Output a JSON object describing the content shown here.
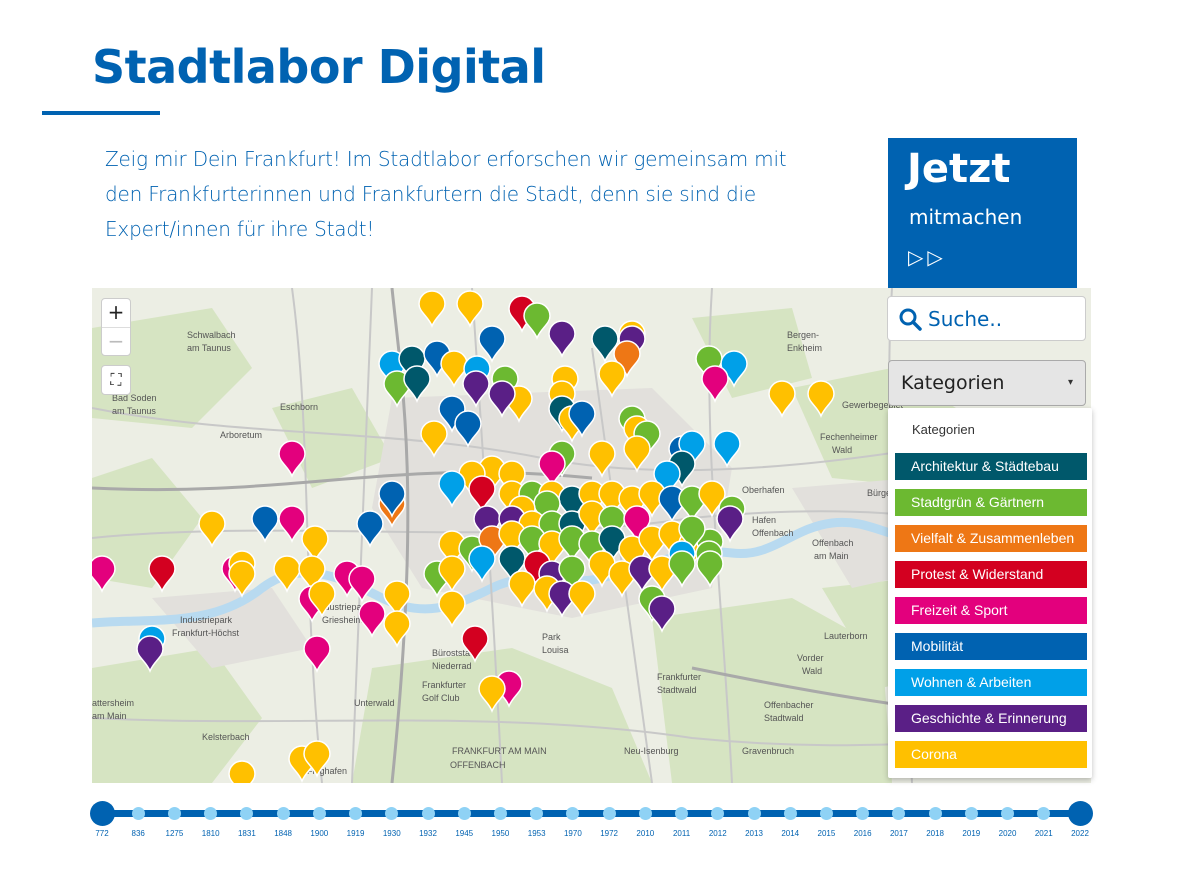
{
  "header": {
    "title": "Stadtlabor Digital",
    "intro": "Zeig mir Dein Frankfurt! Im Stadtlabor erforschen wir gemeinsam mit den Frankfurterinnen und Frankfurtern die Stadt, denn sie sind die Expert/innen für ihre Stadt!"
  },
  "cta": {
    "big": "Jetzt",
    "small": "mitmachen",
    "arrows": "▷▷"
  },
  "map": {
    "zoom_in": "+",
    "zoom_out": "−",
    "fullscreen": "⛶",
    "place_labels": [
      {
        "text": "Schwalbach"
      },
      {
        "text": "am Taunus"
      },
      {
        "text": "Bad Soden"
      },
      {
        "text": "am Taunus"
      },
      {
        "text": "Eschborn"
      },
      {
        "text": "Arboretum"
      },
      {
        "text": "Bergen-"
      },
      {
        "text": "Enkheim"
      },
      {
        "text": "Oberhafen"
      },
      {
        "text": "Offenbach"
      },
      {
        "text": "am Main"
      },
      {
        "text": "Hafen"
      },
      {
        "text": "Offenbach"
      },
      {
        "text": "Industriepark"
      },
      {
        "text": "Frankfurt-Höchst"
      },
      {
        "text": "Büroststadt"
      },
      {
        "text": "Niederrad"
      },
      {
        "text": "Frankfurter"
      },
      {
        "text": "Golf Club"
      },
      {
        "text": "Unterwald"
      },
      {
        "text": "Park"
      },
      {
        "text": "Louisa"
      },
      {
        "text": "Frankfurter"
      },
      {
        "text": "Stadtwald"
      },
      {
        "text": "FRANKFURT AM MAIN"
      },
      {
        "text": "OFFENBACH"
      },
      {
        "text": "Neu-Isenburg"
      },
      {
        "text": "Gravenbruch"
      },
      {
        "text": "Kelsterbach"
      },
      {
        "text": "Flughafen"
      },
      {
        "text": "Lauterborn"
      },
      {
        "text": "Vorder"
      },
      {
        "text": "Wald"
      },
      {
        "text": "Offenbacher"
      },
      {
        "text": "Stadtwald"
      },
      {
        "text": "Industriepark"
      },
      {
        "text": "Griesheim"
      },
      {
        "text": "attersheim"
      },
      {
        "text": "am Main"
      },
      {
        "text": "Fechenheimer"
      },
      {
        "text": "Wald"
      },
      {
        "text": "Bürge"
      },
      {
        "text": "Gewerbegebiet"
      }
    ]
  },
  "search": {
    "placeholder": "Suche.."
  },
  "categories": {
    "select_label": "Kategorien",
    "caret": "▾",
    "header": "Kategorien",
    "items": [
      {
        "label": "Architektur & Städtebau",
        "color": "#00586b"
      },
      {
        "label": "Stadtgrün & Gärtnern",
        "color": "#6cb931"
      },
      {
        "label": "Vielfalt & Zusammenleben",
        "color": "#ee7715"
      },
      {
        "label": "Protest & Widerstand",
        "color": "#d30020"
      },
      {
        "label": "Freizeit & Sport",
        "color": "#e3007d"
      },
      {
        "label": "Mobilität",
        "color": "#0062b1"
      },
      {
        "label": "Wohnen & Arbeiten",
        "color": "#00a0e8"
      },
      {
        "label": "Geschichte & Erinnerung",
        "color": "#5a1f86"
      },
      {
        "label": "Corona",
        "color": "#ffc000"
      }
    ]
  },
  "timeline": {
    "years": [
      "772",
      "836",
      "1275",
      "1810",
      "1831",
      "1848",
      "1900",
      "1919",
      "1930",
      "1932",
      "1945",
      "1950",
      "1953",
      "1970",
      "1972",
      "2010",
      "2011",
      "2012",
      "2013",
      "2014",
      "2015",
      "2016",
      "2017",
      "2018",
      "2019",
      "2020",
      "2021",
      "2022"
    ]
  }
}
